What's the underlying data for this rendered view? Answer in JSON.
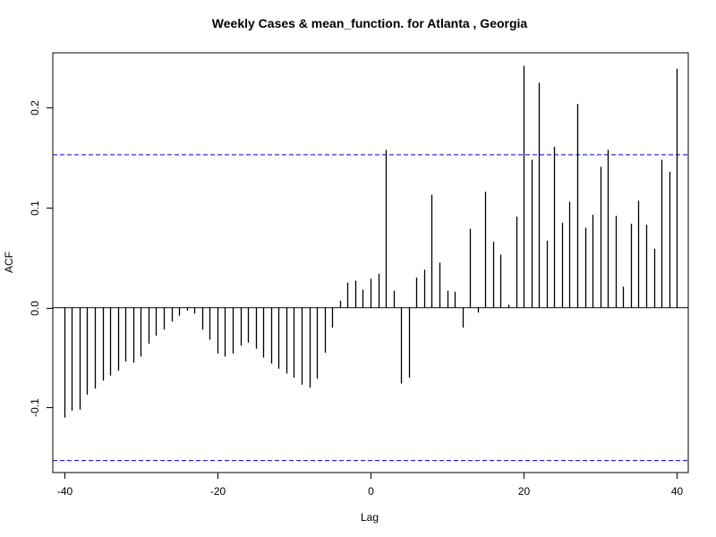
{
  "chart_data": {
    "type": "bar",
    "subtype": "acf-stem",
    "title": "Weekly Cases & mean_function. for Atlanta , Georgia",
    "xlabel": "Lag",
    "ylabel": "ACF",
    "xlim": [
      -41.5,
      41.5
    ],
    "ylim": [
      -0.165,
      0.255
    ],
    "x_ticks": [
      -40,
      -20,
      0,
      20,
      40
    ],
    "x_tick_labels": [
      "-40",
      "-20",
      "0",
      "20",
      "40"
    ],
    "y_ticks": [
      -0.1,
      0.0,
      0.1,
      0.2
    ],
    "y_tick_labels": [
      "-0.1",
      "0.0",
      "0.1",
      "0.2"
    ],
    "zero_line": 0,
    "confidence_band": [
      -0.153,
      0.153
    ],
    "confidence_color": "#0000cc",
    "series": [
      {
        "x": [
          -40,
          -39,
          -38,
          -37,
          -36,
          -35,
          -34,
          -33,
          -32,
          -31,
          -30,
          -29,
          -28,
          -27,
          -26,
          -25,
          -24,
          -23,
          -22,
          -21,
          -20,
          -19,
          -18,
          -17,
          -16,
          -15,
          -14,
          -13,
          -12,
          -11,
          -10,
          -9,
          -8,
          -7,
          -6,
          -5,
          -4,
          -3,
          -2,
          -1,
          0,
          1,
          2,
          3,
          4,
          5,
          6,
          7,
          8,
          9,
          10,
          11,
          12,
          13,
          14,
          15,
          16,
          17,
          18,
          19,
          20,
          21,
          22,
          23,
          24,
          25,
          26,
          27,
          28,
          29,
          30,
          31,
          32,
          33,
          34,
          35,
          36,
          37,
          38,
          39,
          40
        ],
        "values": [
          -0.11,
          -0.103,
          -0.102,
          -0.087,
          -0.081,
          -0.073,
          -0.068,
          -0.063,
          -0.054,
          -0.055,
          -0.049,
          -0.036,
          -0.028,
          -0.022,
          -0.014,
          -0.008,
          -0.003,
          -0.006,
          -0.022,
          -0.032,
          -0.046,
          -0.049,
          -0.046,
          -0.038,
          -0.035,
          -0.041,
          -0.05,
          -0.056,
          -0.061,
          -0.066,
          -0.07,
          -0.077,
          -0.08,
          -0.071,
          -0.045,
          -0.02,
          0.007,
          0.025,
          0.027,
          0.018,
          0.029,
          0.034,
          0.158,
          0.017,
          -0.076,
          -0.07,
          0.03,
          0.038,
          0.113,
          0.045,
          0.017,
          0.016,
          -0.02,
          0.079,
          -0.005,
          0.116,
          0.066,
          0.053,
          0.003,
          0.091,
          0.242,
          0.148,
          0.225,
          0.067,
          0.161,
          0.085,
          0.106,
          0.204,
          0.08,
          0.093,
          0.141,
          0.158,
          0.092,
          0.021,
          0.084,
          0.107,
          0.083,
          0.059,
          0.148,
          0.136,
          0.239
        ]
      }
    ],
    "grid": false,
    "bar_color": "#000000"
  }
}
